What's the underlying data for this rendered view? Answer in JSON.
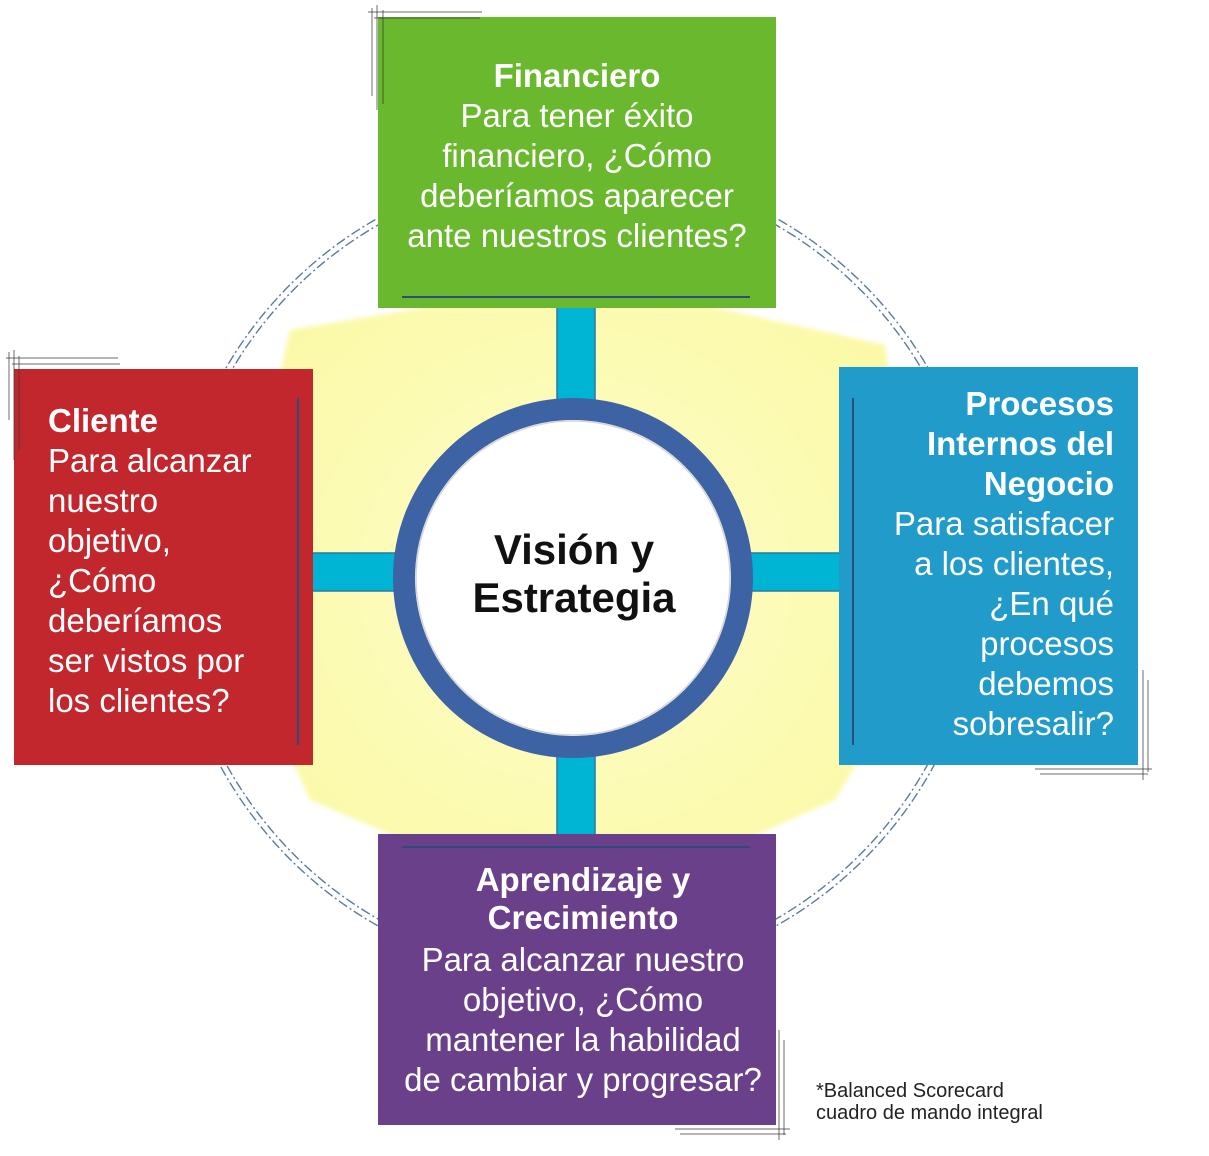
{
  "center": {
    "lines": [
      "Visión y",
      "Estrategia"
    ]
  },
  "financiero": {
    "title": "Financiero",
    "lines": [
      "Para tener éxito",
      "financiero, ¿Cómo",
      "deberíamos aparecer",
      "ante nuestros clientes?"
    ]
  },
  "cliente": {
    "title": "Cliente",
    "lines": [
      "Para alcanzar",
      "nuestro",
      "objetivo,",
      "¿Cómo",
      "deberíamos",
      "ser vistos por",
      "los clientes?"
    ]
  },
  "procesos": {
    "title_lines": [
      "Procesos",
      "Internos del",
      "Negocio"
    ],
    "lines": [
      "Para satisfacer",
      "a los clientes,",
      "¿En qué",
      "procesos",
      "debemos",
      "sobresalir?"
    ]
  },
  "aprendizaje": {
    "title_lines": [
      "Aprendizaje y",
      "Crecimiento"
    ],
    "lines": [
      "Para alcanzar nuestro",
      "objetivo, ¿Cómo",
      "mantener la habilidad",
      "de cambiar y progresar?"
    ]
  },
  "footnote": {
    "lines": [
      "*Balanced Scorecard",
      "cuadro de mando integral"
    ]
  },
  "colors": {
    "financiero": "#6ab82d",
    "cliente": "#c1272d",
    "procesos": "#219bca",
    "aprendizaje": "#6a408a",
    "connector": "#00b5d3",
    "ring": "#3d63a4",
    "star": "#fbf9a6",
    "star_center": "#fefdc9",
    "orbit": "#5b7aa3"
  }
}
